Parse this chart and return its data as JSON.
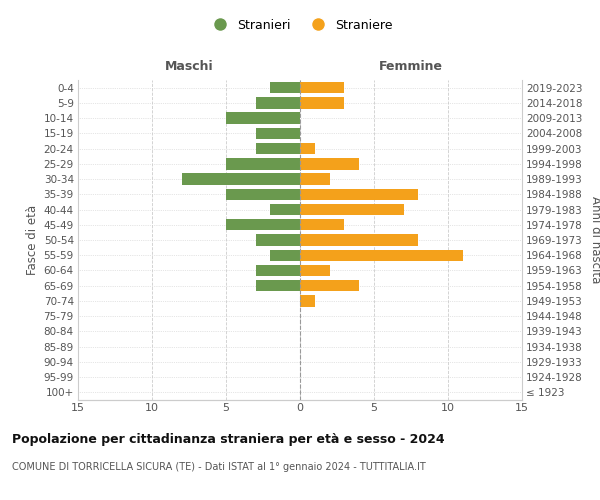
{
  "age_groups": [
    "100+",
    "95-99",
    "90-94",
    "85-89",
    "80-84",
    "75-79",
    "70-74",
    "65-69",
    "60-64",
    "55-59",
    "50-54",
    "45-49",
    "40-44",
    "35-39",
    "30-34",
    "25-29",
    "20-24",
    "15-19",
    "10-14",
    "5-9",
    "0-4"
  ],
  "birth_years": [
    "≤ 1923",
    "1924-1928",
    "1929-1933",
    "1934-1938",
    "1939-1943",
    "1944-1948",
    "1949-1953",
    "1954-1958",
    "1959-1963",
    "1964-1968",
    "1969-1973",
    "1974-1978",
    "1979-1983",
    "1984-1988",
    "1989-1993",
    "1994-1998",
    "1999-2003",
    "2004-2008",
    "2009-2013",
    "2014-2018",
    "2019-2023"
  ],
  "maschi": [
    0,
    0,
    0,
    0,
    0,
    0,
    0,
    3,
    3,
    2,
    3,
    5,
    2,
    5,
    8,
    5,
    3,
    3,
    5,
    3,
    2
  ],
  "femmine": [
    0,
    0,
    0,
    0,
    0,
    0,
    1,
    4,
    2,
    11,
    8,
    3,
    7,
    8,
    2,
    4,
    1,
    0,
    0,
    3,
    3
  ],
  "male_color": "#6a994e",
  "female_color": "#f4a11b",
  "bar_height": 0.75,
  "xlim": 15,
  "title": "Popolazione per cittadinanza straniera per età e sesso - 2024",
  "subtitle": "COMUNE DI TORRICELLA SICURA (TE) - Dati ISTAT al 1° gennaio 2024 - TUTTITALIA.IT",
  "xlabel_left": "Maschi",
  "xlabel_right": "Femmine",
  "ylabel_left": "Fasce di età",
  "ylabel_right": "Anni di nascita",
  "legend_male": "Stranieri",
  "legend_female": "Straniere",
  "background_color": "#ffffff",
  "grid_color": "#cccccc",
  "axis_label_color": "#555555",
  "title_color": "#111111",
  "subtitle_color": "#555555"
}
